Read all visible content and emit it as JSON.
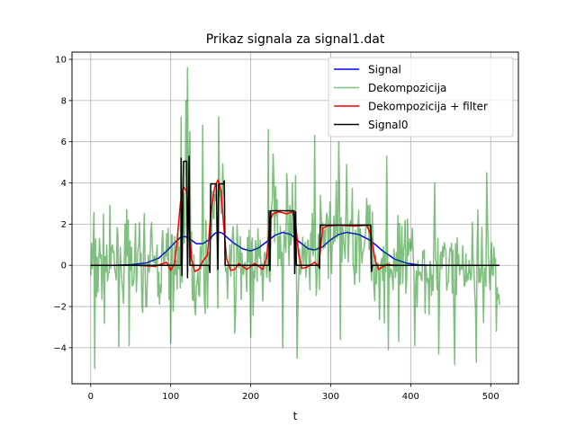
{
  "chart_data": {
    "type": "line",
    "title": "Prikaz signala za signal1.dat",
    "xlabel": "t",
    "ylabel": "",
    "xlim": [
      -23.4,
      534.6
    ],
    "ylim": [
      -5.75,
      10.35
    ],
    "xticks": [
      0,
      100,
      200,
      300,
      400,
      500
    ],
    "yticks": [
      -4,
      -2,
      0,
      2,
      4,
      6,
      8,
      10
    ],
    "grid": true,
    "legend_position": "top-right",
    "series": [
      {
        "name": "Signal",
        "color": "#0000ff",
        "points": [
          [
            0,
            0
          ],
          [
            30,
            0
          ],
          [
            50,
            0.03
          ],
          [
            70,
            0.12
          ],
          [
            85,
            0.35
          ],
          [
            95,
            0.7
          ],
          [
            105,
            1.1
          ],
          [
            112,
            1.35
          ],
          [
            118,
            1.4
          ],
          [
            125,
            1.25
          ],
          [
            132,
            1.05
          ],
          [
            140,
            1.05
          ],
          [
            148,
            1.25
          ],
          [
            155,
            1.55
          ],
          [
            160,
            1.62
          ],
          [
            165,
            1.55
          ],
          [
            172,
            1.3
          ],
          [
            180,
            1.05
          ],
          [
            190,
            0.8
          ],
          [
            200,
            0.7
          ],
          [
            210,
            0.85
          ],
          [
            220,
            1.15
          ],
          [
            230,
            1.45
          ],
          [
            240,
            1.6
          ],
          [
            250,
            1.5
          ],
          [
            262,
            1.1
          ],
          [
            272,
            0.8
          ],
          [
            280,
            0.75
          ],
          [
            290,
            0.9
          ],
          [
            300,
            1.25
          ],
          [
            310,
            1.5
          ],
          [
            320,
            1.6
          ],
          [
            335,
            1.5
          ],
          [
            350,
            1.2
          ],
          [
            365,
            0.7
          ],
          [
            380,
            0.3
          ],
          [
            395,
            0.1
          ],
          [
            410,
            0.02
          ],
          [
            430,
            0
          ],
          [
            511,
            0
          ]
        ]
      },
      {
        "name": "Dekompozicija",
        "color": "#008000",
        "opacity": 0.5,
        "noise_sigma": 1.55,
        "seed": 7,
        "spikes": [
          [
            5,
            -5.0
          ],
          [
            48,
            -3.9
          ],
          [
            100,
            -3.8
          ],
          [
            113,
            7.2
          ],
          [
            116,
            3.5
          ],
          [
            119,
            8.0
          ],
          [
            121,
            9.6
          ],
          [
            124,
            6.5
          ],
          [
            131,
            -2.4
          ],
          [
            140,
            6.8
          ],
          [
            160,
            7.2
          ],
          [
            180,
            -3.3
          ],
          [
            200,
            -3.5
          ],
          [
            222,
            6.6
          ],
          [
            228,
            5.4
          ],
          [
            240,
            -4.0
          ],
          [
            252,
            4.0
          ],
          [
            258,
            -4.5
          ],
          [
            280,
            6.3
          ],
          [
            310,
            6.0
          ],
          [
            312,
            -3.6
          ],
          [
            320,
            4.9
          ],
          [
            370,
            5.3
          ],
          [
            372,
            -4.1
          ],
          [
            385,
            -3.7
          ],
          [
            405,
            -3.9
          ],
          [
            430,
            4.0
          ],
          [
            435,
            -4.3
          ],
          [
            455,
            -4.8
          ],
          [
            482,
            -4.7
          ],
          [
            495,
            4.5
          ],
          [
            507,
            -3.2
          ]
        ]
      },
      {
        "name": "Dekompozicija + filter",
        "color": "#ff0000",
        "points": [
          [
            0,
            0
          ],
          [
            60,
            0
          ],
          [
            80,
            -0.05
          ],
          [
            95,
            0.15
          ],
          [
            100,
            -0.25
          ],
          [
            105,
            0.1
          ],
          [
            108,
            1.2
          ],
          [
            112,
            3.0
          ],
          [
            116,
            3.8
          ],
          [
            120,
            3.6
          ],
          [
            123,
            2.0
          ],
          [
            126,
            0.3
          ],
          [
            130,
            -0.3
          ],
          [
            135,
            -0.2
          ],
          [
            140,
            0.2
          ],
          [
            146,
            0.5
          ],
          [
            150,
            2.5
          ],
          [
            155,
            3.8
          ],
          [
            159,
            4.15
          ],
          [
            163,
            3.6
          ],
          [
            166,
            2.0
          ],
          [
            170,
            0.3
          ],
          [
            175,
            -0.25
          ],
          [
            180,
            -0.2
          ],
          [
            185,
            0.1
          ],
          [
            195,
            -0.2
          ],
          [
            205,
            0.1
          ],
          [
            215,
            -0.2
          ],
          [
            220,
            0.4
          ],
          [
            224,
            2.2
          ],
          [
            228,
            2.5
          ],
          [
            235,
            2.6
          ],
          [
            245,
            2.5
          ],
          [
            252,
            2.6
          ],
          [
            256,
            2.1
          ],
          [
            260,
            0.5
          ],
          [
            264,
            -0.15
          ],
          [
            270,
            -0.1
          ],
          [
            280,
            0.15
          ],
          [
            285,
            -0.05
          ],
          [
            290,
            1.8
          ],
          [
            295,
            1.9
          ],
          [
            310,
            1.95
          ],
          [
            330,
            1.9
          ],
          [
            345,
            1.95
          ],
          [
            350,
            1.5
          ],
          [
            356,
            0.2
          ],
          [
            360,
            -0.2
          ],
          [
            370,
            0.05
          ],
          [
            380,
            0
          ],
          [
            511,
            0
          ]
        ]
      },
      {
        "name": "Signal0",
        "color": "#000000",
        "points": [
          [
            0,
            0
          ],
          [
            113,
            0
          ],
          [
            113,
            5.2
          ],
          [
            114,
            -0.5
          ],
          [
            116,
            5.05
          ],
          [
            120,
            5.05
          ],
          [
            121,
            -0.6
          ],
          [
            123,
            5.3
          ],
          [
            124,
            0
          ],
          [
            148,
            0
          ],
          [
            149,
            -0.35
          ],
          [
            150,
            3.95
          ],
          [
            157,
            3.95
          ],
          [
            159,
            -0.2
          ],
          [
            160,
            3.95
          ],
          [
            166,
            3.95
          ],
          [
            167,
            4.1
          ],
          [
            168,
            0
          ],
          [
            223,
            0
          ],
          [
            223,
            2.65
          ],
          [
            224,
            -0.25
          ],
          [
            225,
            2.65
          ],
          [
            254,
            2.65
          ],
          [
            255,
            -0.4
          ],
          [
            256,
            2.6
          ],
          [
            257,
            0
          ],
          [
            285,
            0
          ],
          [
            286,
            -0.15
          ],
          [
            287,
            1.95
          ],
          [
            350,
            1.95
          ],
          [
            351,
            -0.3
          ],
          [
            352,
            0
          ],
          [
            511,
            0
          ]
        ]
      }
    ]
  }
}
